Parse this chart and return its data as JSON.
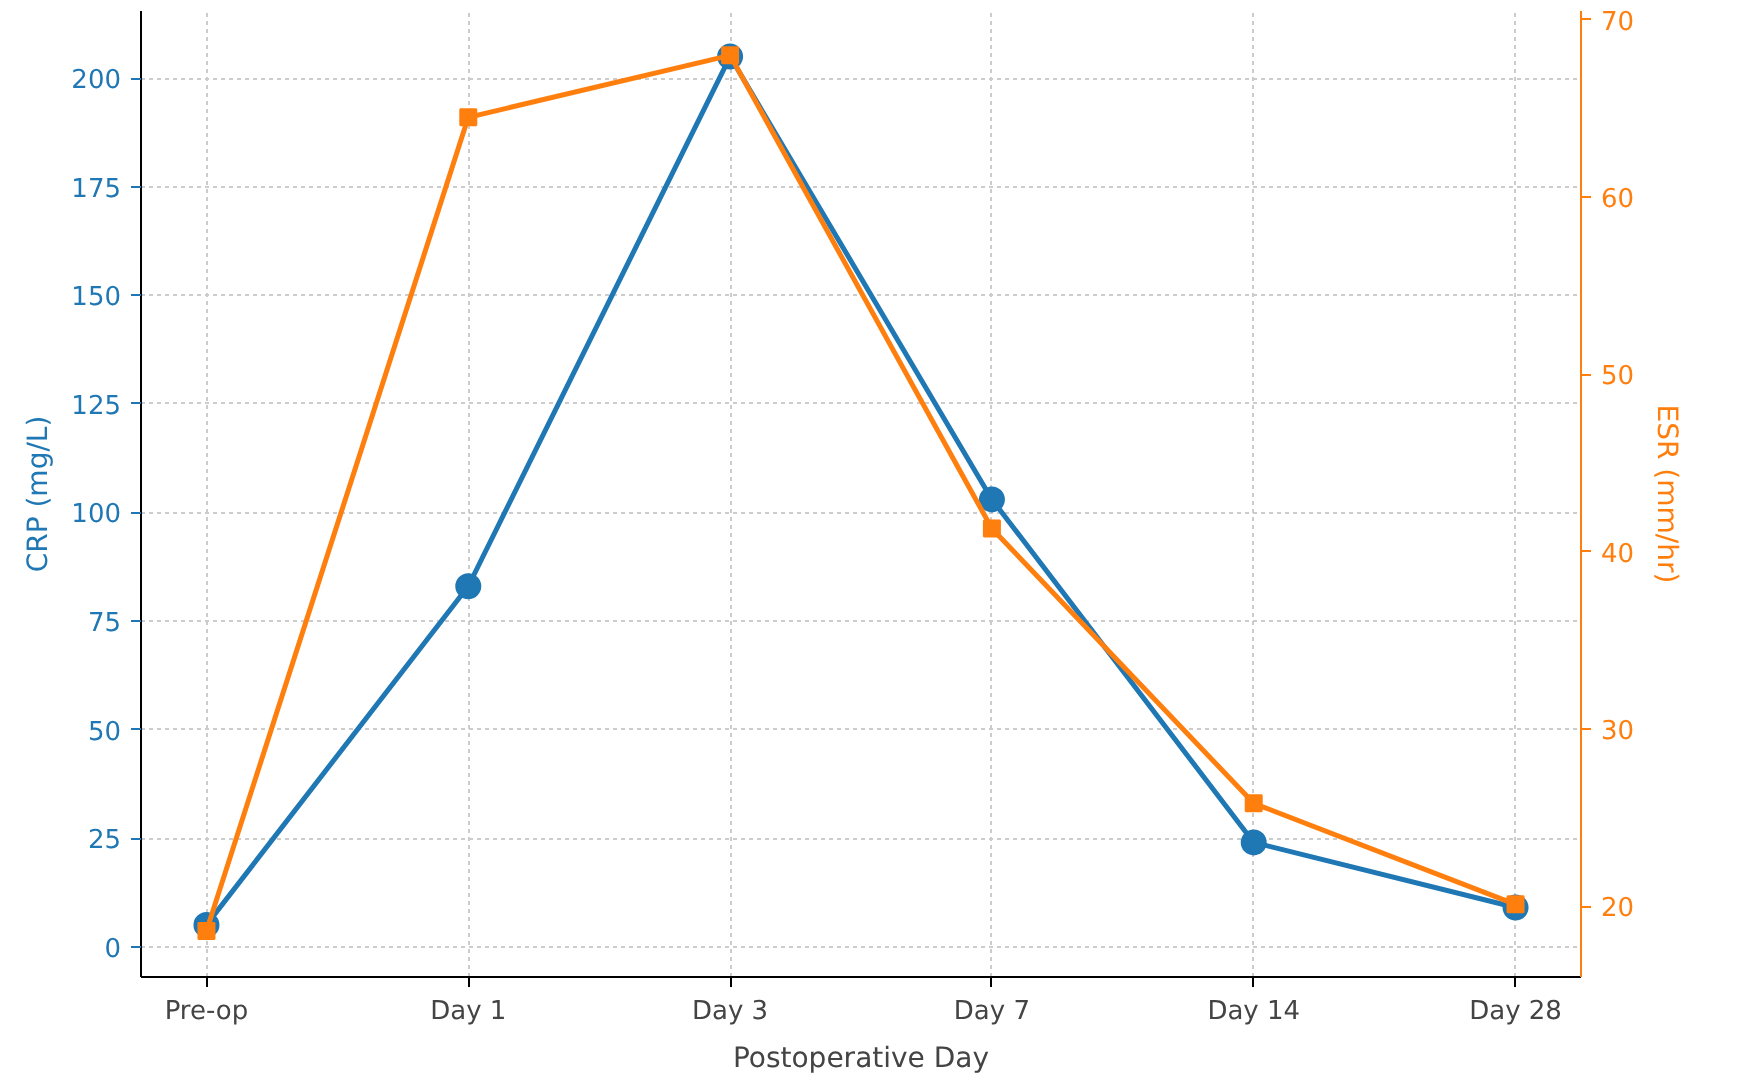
{
  "chart_data": {
    "type": "line",
    "xlabel": "Postoperative Day",
    "ylabel": "CRP (mg/L)",
    "y2label": "ESR (mm/hr)",
    "categories": [
      "Pre-op",
      "Day 1",
      "Day 3",
      "Day 7",
      "Day 14",
      "Day 28"
    ],
    "series": [
      {
        "color": "#1f77b4",
        "marker": "circle",
        "values": [
          5,
          83,
          205,
          103,
          24,
          9
        ]
      },
      {
        "color": "#ff7f0e",
        "marker": "square",
        "axis": "y2",
        "values": [
          18.6,
          64.5,
          68,
          41.3,
          25.8,
          20.1
        ]
      }
    ],
    "ylim": [
      -7,
      215.5
    ],
    "yticks": [
      0,
      25,
      50,
      75,
      100,
      125,
      150,
      175,
      200
    ],
    "y2lim": [
      16,
      70.5
    ],
    "y2ticks": [
      20,
      30,
      40,
      50,
      60,
      70
    ],
    "grid": true,
    "line_style": "solid"
  }
}
